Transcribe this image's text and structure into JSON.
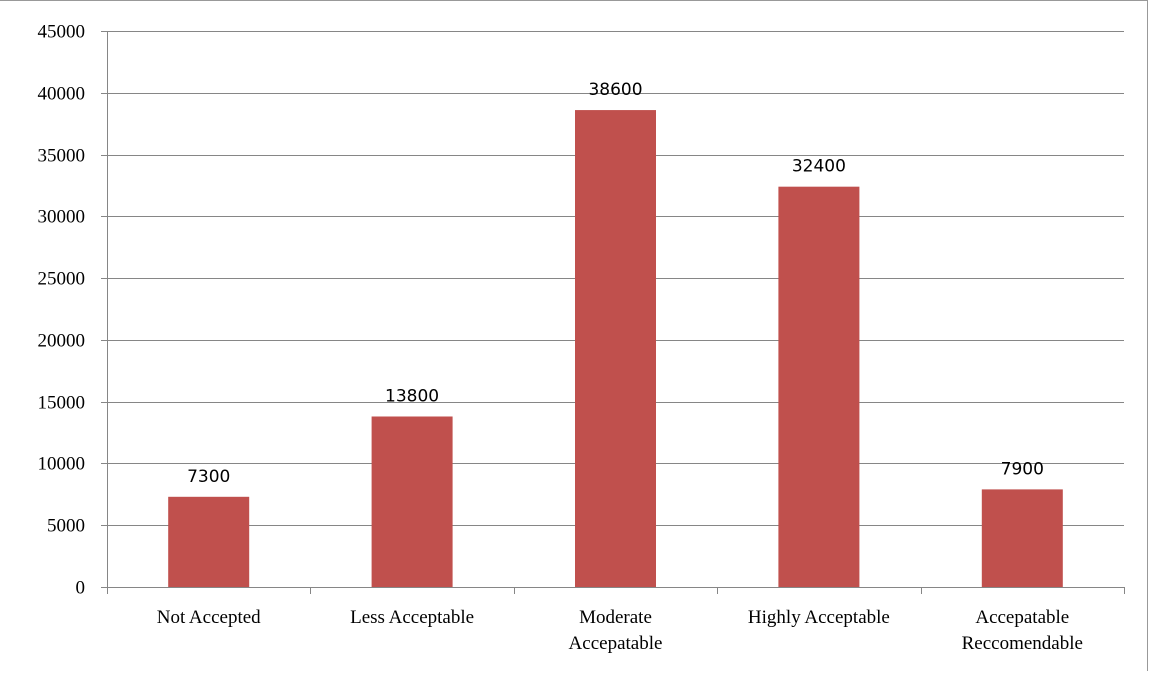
{
  "chart_data": {
    "type": "bar",
    "categories": [
      [
        "Not Accepted"
      ],
      [
        "Less Acceptable"
      ],
      [
        "Moderate",
        "Accepatable"
      ],
      [
        "Highly Acceptable"
      ],
      [
        "Accepatable",
        "Reccomendable"
      ]
    ],
    "values": [
      7300,
      13800,
      38600,
      32400,
      7900
    ],
    "data_labels": [
      "7300",
      "13800",
      "38600",
      "32400",
      "7900"
    ],
    "yticks": [
      0,
      5000,
      10000,
      15000,
      20000,
      25000,
      30000,
      35000,
      40000,
      45000
    ],
    "ylim": [
      0,
      45000
    ],
    "grid": true,
    "legend": "none",
    "bar_color": "#C0504D",
    "grid_color": "#868686"
  }
}
